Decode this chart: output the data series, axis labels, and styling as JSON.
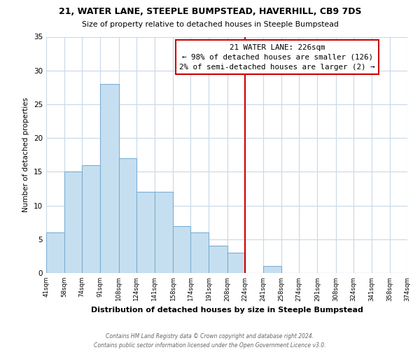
{
  "title1": "21, WATER LANE, STEEPLE BUMPSTEAD, HAVERHILL, CB9 7DS",
  "title2": "Size of property relative to detached houses in Steeple Bumpstead",
  "xlabel": "Distribution of detached houses by size in Steeple Bumpstead",
  "ylabel": "Number of detached properties",
  "bin_labels": [
    "41sqm",
    "58sqm",
    "74sqm",
    "91sqm",
    "108sqm",
    "124sqm",
    "141sqm",
    "158sqm",
    "174sqm",
    "191sqm",
    "208sqm",
    "224sqm",
    "241sqm",
    "258sqm",
    "274sqm",
    "291sqm",
    "308sqm",
    "324sqm",
    "341sqm",
    "358sqm",
    "374sqm"
  ],
  "bin_edges": [
    41,
    58,
    74,
    91,
    108,
    124,
    141,
    158,
    174,
    191,
    208,
    224,
    241,
    258,
    274,
    291,
    308,
    324,
    341,
    358,
    374
  ],
  "counts": [
    6,
    15,
    16,
    28,
    17,
    12,
    12,
    7,
    6,
    4,
    3,
    0,
    1,
    0,
    0,
    0,
    0,
    0,
    0,
    0
  ],
  "bar_color": "#c6dff0",
  "bar_edge_color": "#7bafd4",
  "property_line_x": 224,
  "property_line_color": "#cc0000",
  "ylim": [
    0,
    35
  ],
  "yticks": [
    0,
    5,
    10,
    15,
    20,
    25,
    30,
    35
  ],
  "annotation_title": "21 WATER LANE: 226sqm",
  "annotation_line1": "← 98% of detached houses are smaller (126)",
  "annotation_line2": "2% of semi-detached houses are larger (2) →",
  "annotation_box_color": "#ffffff",
  "annotation_box_edge": "#cc0000",
  "footer1": "Contains HM Land Registry data © Crown copyright and database right 2024.",
  "footer2": "Contains public sector information licensed under the Open Government Licence v3.0.",
  "background_color": "#ffffff",
  "grid_color": "#c8d8e8"
}
